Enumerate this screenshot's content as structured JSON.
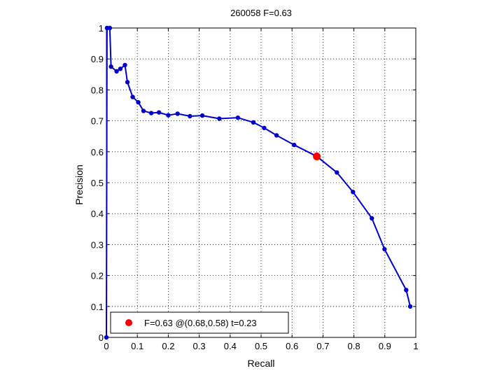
{
  "chart_data": {
    "type": "line",
    "title": "260058 F=0.63",
    "xlabel": "Recall",
    "ylabel": "Precision",
    "xlim": [
      0,
      1
    ],
    "ylim": [
      0,
      1
    ],
    "xticks": [
      0,
      0.1,
      0.2,
      0.3,
      0.4,
      0.5,
      0.6,
      0.7,
      0.8,
      0.9,
      1
    ],
    "yticks": [
      0,
      0.1,
      0.2,
      0.3,
      0.4,
      0.5,
      0.6,
      0.7,
      0.8,
      0.9,
      1
    ],
    "xtick_labels": [
      "0",
      "0.1",
      "0.2",
      "0.3",
      "0.4",
      "0.5",
      "0.6",
      "0.7",
      "0.8",
      "0.9",
      "1"
    ],
    "ytick_labels": [
      "0",
      "0.1",
      "0.2",
      "0.3",
      "0.4",
      "0.5",
      "0.6",
      "0.7",
      "0.8",
      "0.9",
      "1"
    ],
    "grid": true,
    "grid_style": "dotted",
    "series": [
      {
        "color": "#0000cc",
        "x": [
          0,
          0.002,
          0.011,
          0.015,
          0.033,
          0.045,
          0.06,
          0.068,
          0.085,
          0.103,
          0.12,
          0.145,
          0.17,
          0.2,
          0.23,
          0.27,
          0.31,
          0.365,
          0.425,
          0.475,
          0.51,
          0.55,
          0.607,
          0.68,
          0.745,
          0.797,
          0.858,
          0.899,
          0.969,
          0.982
        ],
        "y": [
          0,
          1,
          1,
          0.875,
          0.86,
          0.868,
          0.88,
          0.825,
          0.777,
          0.76,
          0.732,
          0.725,
          0.727,
          0.718,
          0.723,
          0.715,
          0.717,
          0.707,
          0.71,
          0.695,
          0.677,
          0.653,
          0.622,
          0.585,
          0.533,
          0.47,
          0.385,
          0.285,
          0.153,
          0.1
        ]
      }
    ],
    "highlight": {
      "x": 0.68,
      "y": 0.585,
      "color": "#ff0000"
    },
    "legend": {
      "position": "bottom-left",
      "label": "F=0.63 @(0.68,0.58) t=0.23",
      "marker_color": "#ff0000"
    }
  }
}
